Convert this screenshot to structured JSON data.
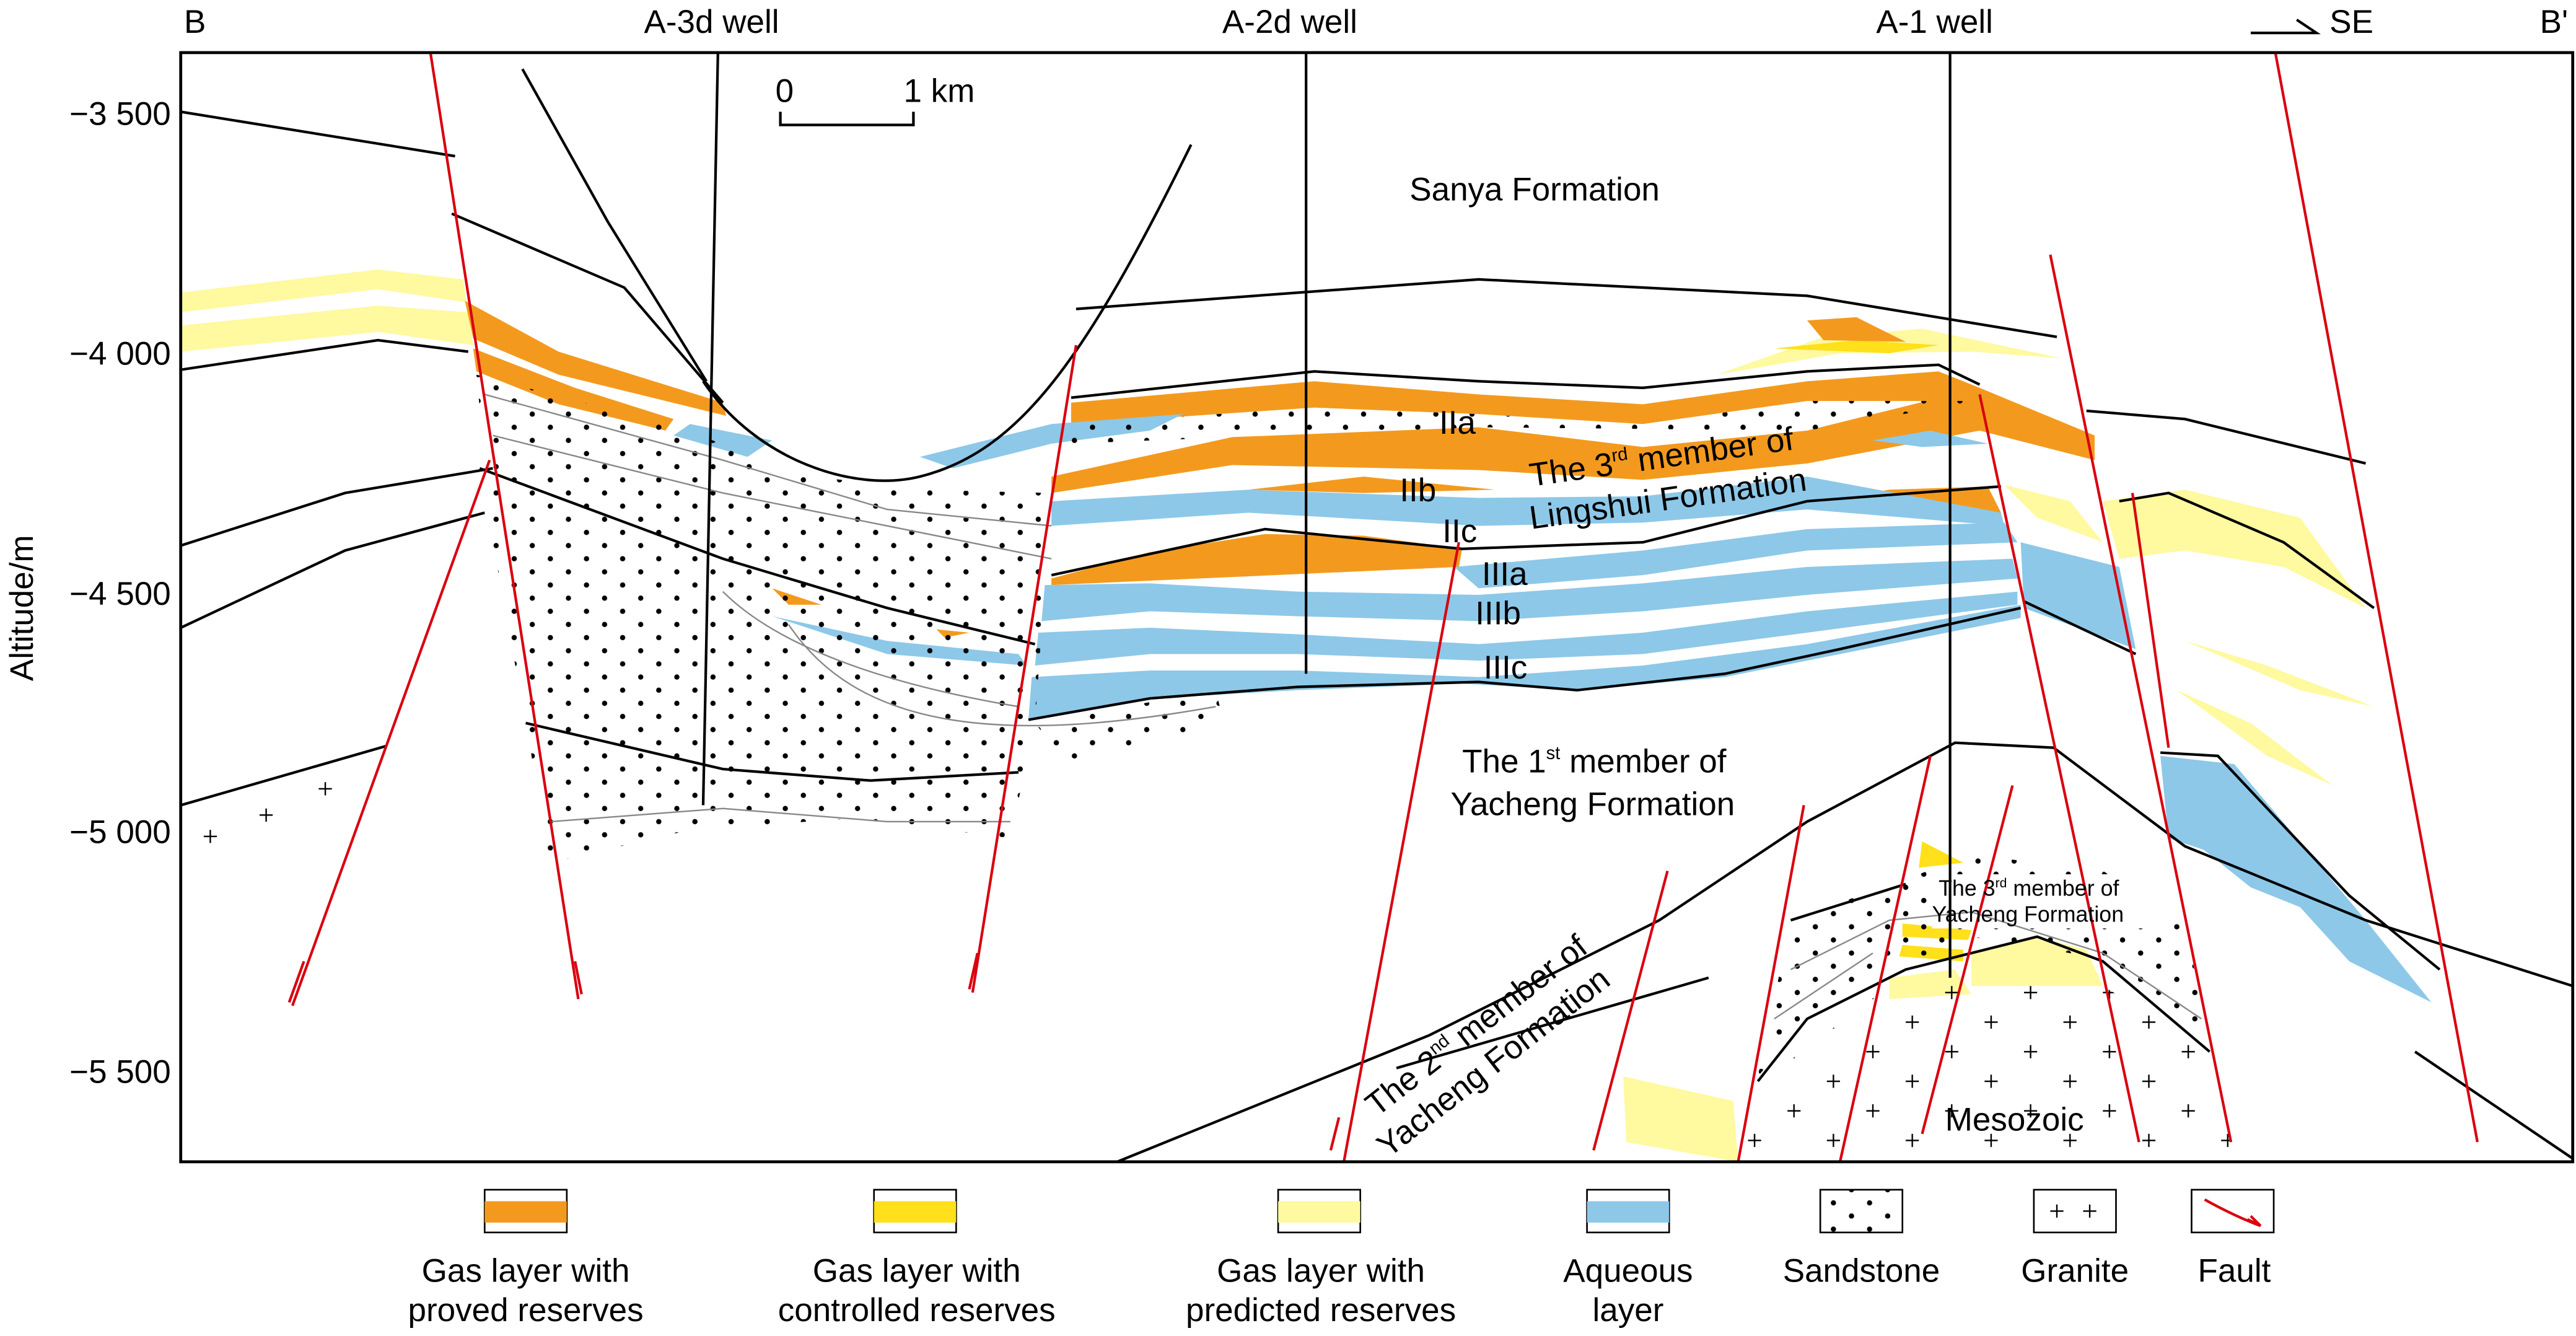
{
  "section": {
    "start_label": "B",
    "end_label": "B'",
    "direction_label": "SE",
    "wells": [
      "A-3d well",
      "A-2d well",
      "A-1 well"
    ],
    "scale_bar": {
      "start": "0",
      "end": "1 km"
    }
  },
  "y_axis": {
    "label": "Altitude/m",
    "ticks": [
      "−3 500",
      "−4 000",
      "−4 500",
      "−5 000",
      "−5 500"
    ]
  },
  "formations": {
    "sanya": "Sanya Formation",
    "lingshui_3": {
      "prefix": "The 3",
      "sup": "rd",
      "suffix": " member of",
      "line2": "Lingshui Formation"
    },
    "yacheng_1": {
      "prefix": "The 1",
      "sup": "st",
      "suffix": " member of",
      "line2": "Yacheng Formation"
    },
    "yacheng_3": {
      "prefix": "The 3",
      "sup": "rd",
      "suffix": " member of",
      "line2": "Yacheng Formation"
    },
    "yacheng_2": {
      "prefix": "The 2",
      "sup": "nd",
      "suffix": " member of",
      "line2": "Yacheng Formation"
    },
    "mesozoic": "Mesozoic"
  },
  "layers": [
    "IIa",
    "IIb",
    "IIc",
    "IIIa",
    "IIIb",
    "IIIc"
  ],
  "legend": [
    {
      "line1": "Gas layer with",
      "line2": "proved reserves",
      "color": "#f39a1e"
    },
    {
      "line1": "Gas layer with",
      "line2": "controlled reserves",
      "color": "#ffe01a"
    },
    {
      "line1": "Gas layer with",
      "line2": "predicted reserves",
      "color": "#fff9a0"
    },
    {
      "line1": "Aqueous",
      "line2": "layer",
      "color": "#8dc8e8"
    },
    {
      "line1": "Sandstone",
      "line2": ""
    },
    {
      "line1": "Granite",
      "line2": ""
    },
    {
      "line1": "Fault",
      "line2": ""
    }
  ],
  "colors": {
    "fault": "#d9000f",
    "proved": "#f39a1e",
    "controlled": "#ffe01a",
    "predicted": "#fff9a0",
    "aqueous": "#8dc8e8"
  }
}
